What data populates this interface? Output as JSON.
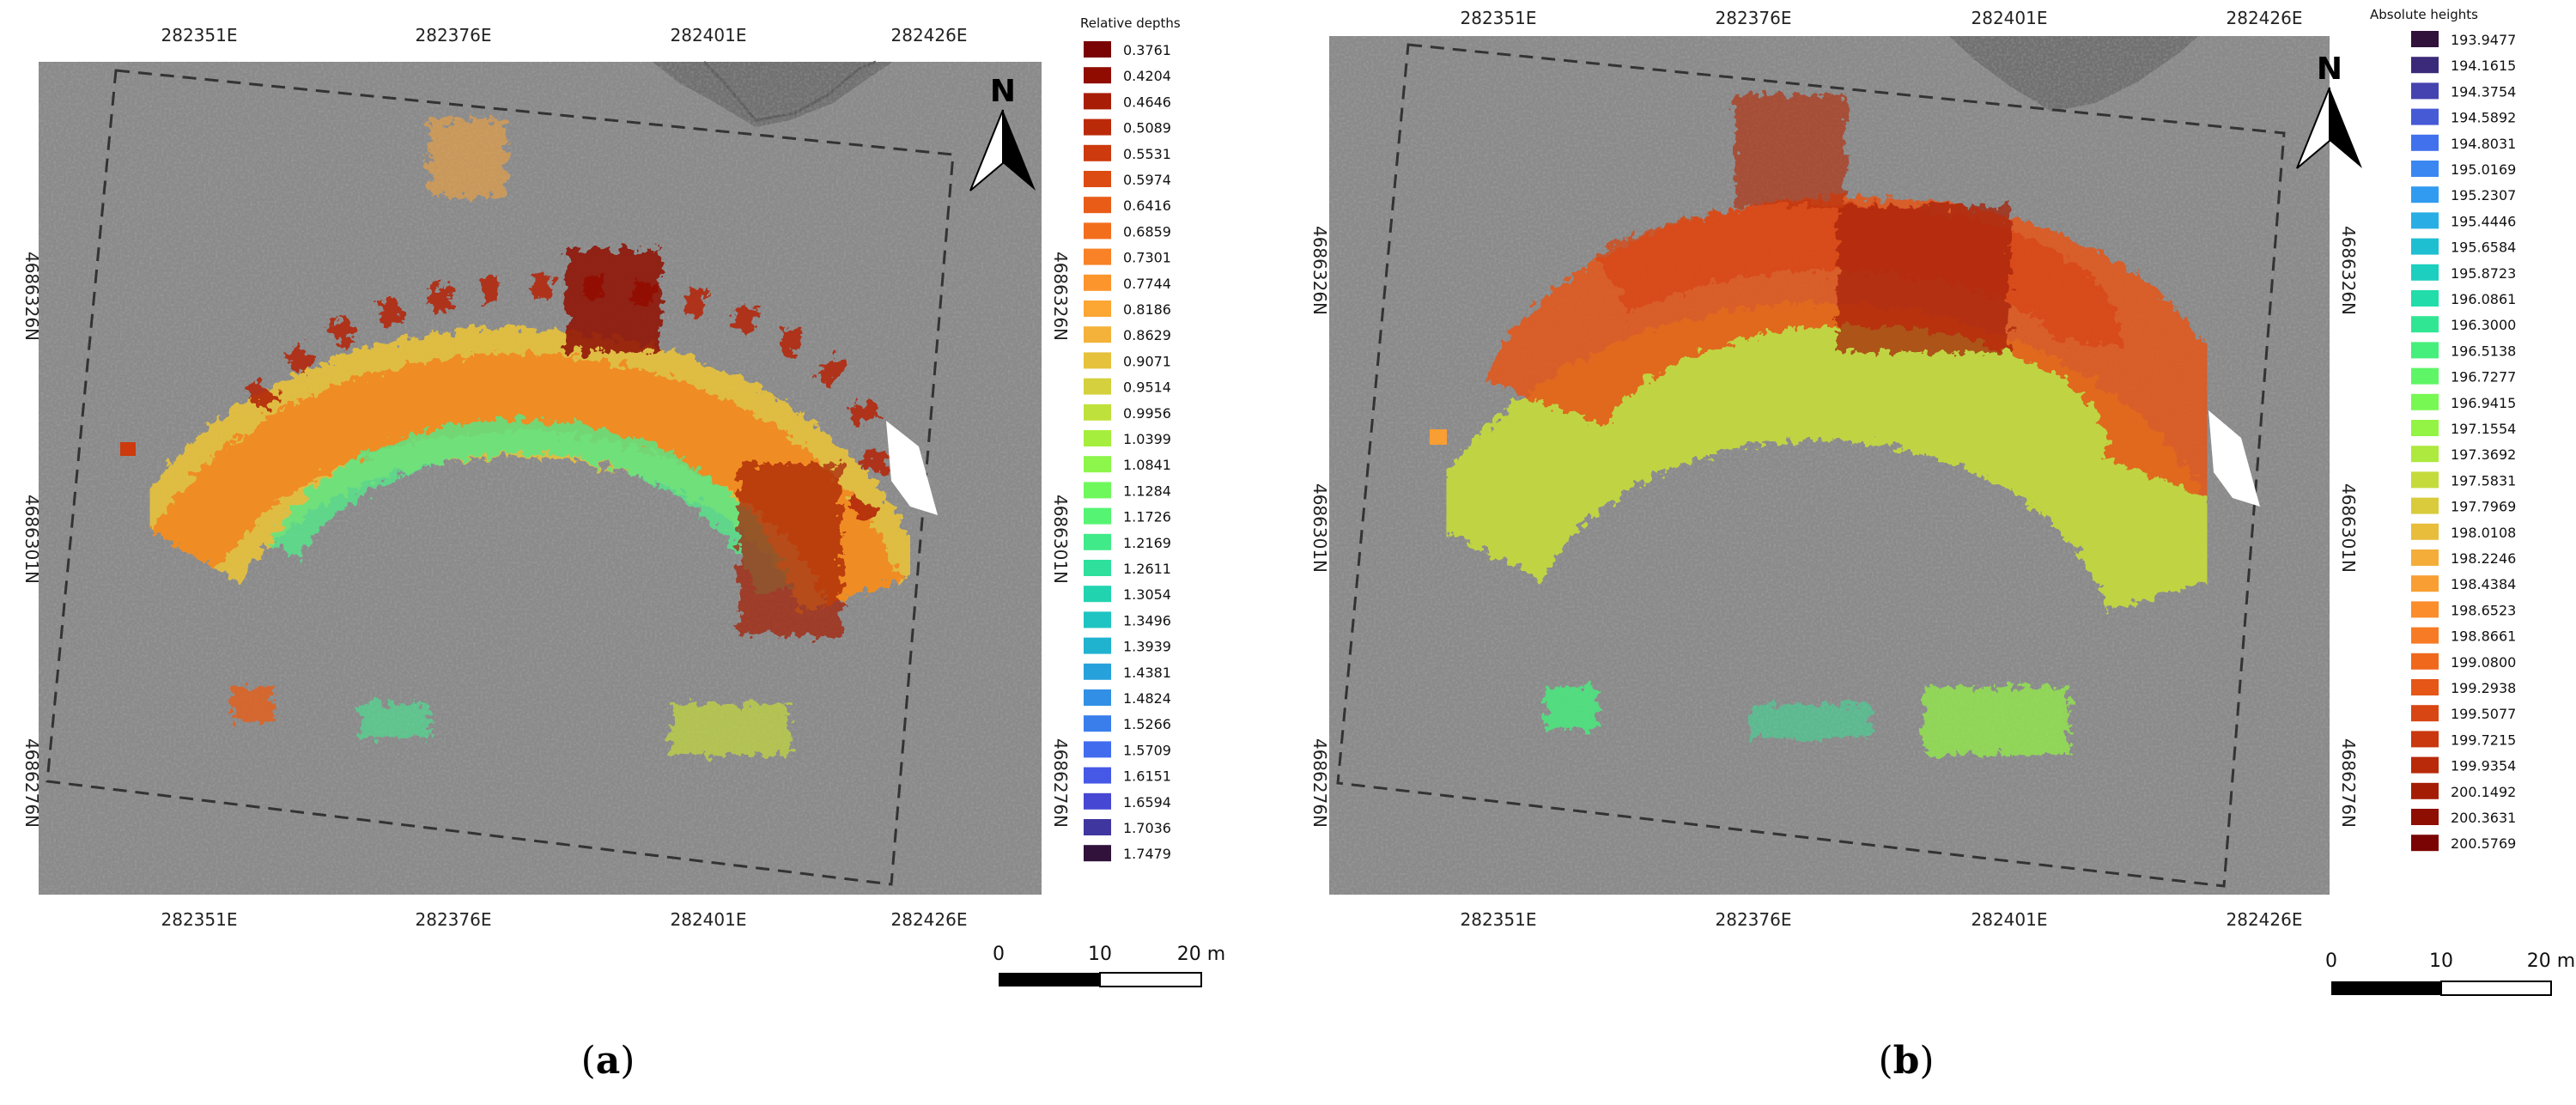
{
  "panels": [
    {
      "id": "a",
      "caption_open": "(",
      "caption_letter": "a",
      "caption_close": ")",
      "legend_title": "Relative depths",
      "legend_items": [
        {
          "value": "0.3761",
          "color": "#7a0403"
        },
        {
          "value": "0.4204",
          "color": "#900c00"
        },
        {
          "value": "0.4646",
          "color": "#a81d05"
        },
        {
          "value": "0.5089",
          "color": "#bb2a08"
        },
        {
          "value": "0.5531",
          "color": "#cc3a0d"
        },
        {
          "value": "0.5974",
          "color": "#dc4b12"
        },
        {
          "value": "0.6416",
          "color": "#e85c18"
        },
        {
          "value": "0.6859",
          "color": "#f26e1d"
        },
        {
          "value": "0.7301",
          "color": "#f88225"
        },
        {
          "value": "0.7744",
          "color": "#fb952c"
        },
        {
          "value": "0.8186",
          "color": "#fca634"
        },
        {
          "value": "0.8629",
          "color": "#f4b23a"
        },
        {
          "value": "0.9071",
          "color": "#e6c13c"
        },
        {
          "value": "0.9514",
          "color": "#d5d03d"
        },
        {
          "value": "0.9956",
          "color": "#bfe13b"
        },
        {
          "value": "1.0399",
          "color": "#a6ee3d"
        },
        {
          "value": "1.0841",
          "color": "#8cf64a"
        },
        {
          "value": "1.1284",
          "color": "#6ff85c"
        },
        {
          "value": "1.1726",
          "color": "#55f472"
        },
        {
          "value": "1.2169",
          "color": "#41ea88"
        },
        {
          "value": "1.2611",
          "color": "#2ee09c"
        },
        {
          "value": "1.3054",
          "color": "#22d3b0"
        },
        {
          "value": "1.3496",
          "color": "#1dc4c1"
        },
        {
          "value": "1.3939",
          "color": "#1fb3d0"
        },
        {
          "value": "1.4381",
          "color": "#27a1dc"
        },
        {
          "value": "1.4824",
          "color": "#3190e6"
        },
        {
          "value": "1.5266",
          "color": "#3a7eec"
        },
        {
          "value": "1.5709",
          "color": "#416cee"
        },
        {
          "value": "1.6151",
          "color": "#4659e6"
        },
        {
          "value": "1.6594",
          "color": "#4647d2"
        },
        {
          "value": "1.7036",
          "color": "#40369f"
        },
        {
          "value": "1.7479",
          "color": "#30123b"
        }
      ],
      "x_ticks": [
        "282351E",
        "282376E",
        "282401E",
        "282426E"
      ],
      "y_ticks": [
        "4686326N",
        "4686301N",
        "4686276N"
      ],
      "north_label": "N",
      "scale": {
        "label_0": "0",
        "label_mid": "10",
        "label_end": "20 m"
      }
    },
    {
      "id": "b",
      "caption_open": "(",
      "caption_letter": "b",
      "caption_close": ")",
      "legend_title": "Absolute heights",
      "legend_items": [
        {
          "value": "193.9477",
          "color": "#30123b"
        },
        {
          "value": "194.1615",
          "color": "#3b2a7a"
        },
        {
          "value": "194.3754",
          "color": "#4543b0"
        },
        {
          "value": "194.5892",
          "color": "#465ad6"
        },
        {
          "value": "194.8031",
          "color": "#4171ec"
        },
        {
          "value": "195.0169",
          "color": "#3a87f2"
        },
        {
          "value": "195.2307",
          "color": "#309bf0"
        },
        {
          "value": "195.4446",
          "color": "#28aee4"
        },
        {
          "value": "195.6584",
          "color": "#1fbfd2"
        },
        {
          "value": "195.8723",
          "color": "#1ccfbe"
        },
        {
          "value": "196.0861",
          "color": "#22dca9"
        },
        {
          "value": "196.3000",
          "color": "#31e693"
        },
        {
          "value": "196.5138",
          "color": "#46ef7c"
        },
        {
          "value": "196.7277",
          "color": "#5ef566"
        },
        {
          "value": "196.9415",
          "color": "#78f852"
        },
        {
          "value": "197.1554",
          "color": "#93f445"
        },
        {
          "value": "197.3692",
          "color": "#ade93e"
        },
        {
          "value": "197.5831",
          "color": "#c5db3b"
        },
        {
          "value": "197.7969",
          "color": "#d9cb3b"
        },
        {
          "value": "198.0108",
          "color": "#e8bd3c"
        },
        {
          "value": "198.2246",
          "color": "#f3ad38"
        },
        {
          "value": "198.4384",
          "color": "#f99e32"
        },
        {
          "value": "198.6523",
          "color": "#fb8d2b"
        },
        {
          "value": "198.8661",
          "color": "#f77b24"
        },
        {
          "value": "199.0800",
          "color": "#f0681c"
        },
        {
          "value": "199.2938",
          "color": "#e55617"
        },
        {
          "value": "199.5077",
          "color": "#d84613"
        },
        {
          "value": "199.7215",
          "color": "#c9380e"
        },
        {
          "value": "199.9354",
          "color": "#b82a09"
        },
        {
          "value": "200.1492",
          "color": "#a51c05"
        },
        {
          "value": "200.3631",
          "color": "#8f0e02"
        },
        {
          "value": "200.5769",
          "color": "#7a0403"
        }
      ],
      "x_ticks": [
        "282351E",
        "282376E",
        "282401E",
        "282426E"
      ],
      "y_ticks": [
        "4686326N",
        "4686301N",
        "4686276N"
      ],
      "north_label": "N",
      "scale": {
        "label_0": "0",
        "label_mid": "10",
        "label_end": "20 m"
      }
    }
  ]
}
